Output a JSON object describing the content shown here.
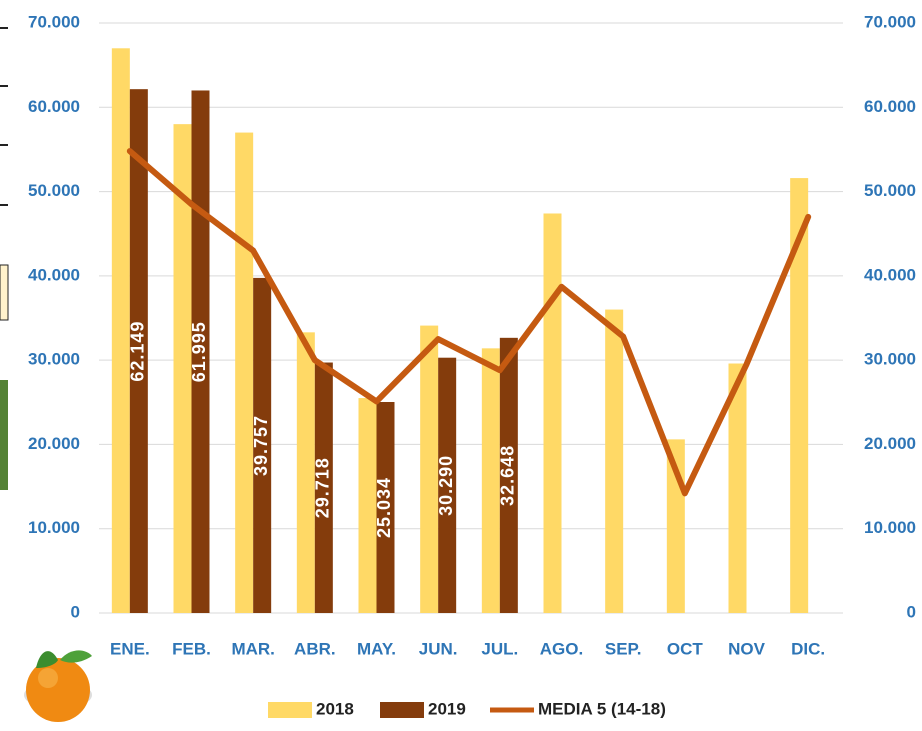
{
  "chart_data": {
    "type": "bar",
    "categories": [
      "ENE.",
      "FEB.",
      "MAR.",
      "ABR.",
      "MAY.",
      "JUN.",
      "JUL.",
      "AGO.",
      "SEP.",
      "OCT",
      "NOV",
      "DIC."
    ],
    "series": [
      {
        "name": "2018",
        "color": "#FFD966",
        "values": [
          67000,
          58000,
          57000,
          33300,
          25500,
          34100,
          31400,
          47400,
          36000,
          20600,
          29600,
          51600
        ]
      },
      {
        "name": "2019",
        "color": "#843C0C",
        "values": [
          62149,
          61995,
          39757,
          29718,
          25034,
          30290,
          32648,
          null,
          null,
          null,
          null,
          null
        ],
        "value_labels": [
          "62.149",
          "61.995",
          "39.757",
          "29.718",
          "25.034",
          "30.290",
          "32.648",
          null,
          null,
          null,
          null,
          null
        ]
      },
      {
        "name": "MEDIA 5 (14-18)",
        "type": "line",
        "axis": "y2",
        "color": "#C55A11",
        "values": [
          54800,
          48500,
          43000,
          30000,
          25100,
          32500,
          28800,
          38700,
          32800,
          14200,
          29500,
          47000
        ]
      }
    ],
    "ylim": [
      0,
      70000
    ],
    "yticks": [
      0,
      {
        "value": 10000,
        "label": "10.000"
      },
      {
        "value": 20000,
        "label": "20.000"
      },
      {
        "value": 30000,
        "label": "30.000"
      },
      {
        "value": 40000,
        "label": "40.000"
      },
      {
        "value": 50000,
        "label": "50.000"
      },
      {
        "value": 60000,
        "label": "60.000"
      },
      {
        "value": 70000,
        "label": "70.000"
      }
    ],
    "y2lim": [
      0,
      70000
    ],
    "y2ticks": [
      0,
      {
        "value": 10000,
        "label": "10.000"
      },
      {
        "value": 20000,
        "label": "20.000"
      },
      {
        "value": 30000,
        "label": "30.000"
      },
      {
        "value": 40000,
        "label": "40.000"
      },
      {
        "value": 50000,
        "label": "50.000"
      },
      {
        "value": 60000,
        "label": "60.000"
      },
      {
        "value": 70000,
        "label": "70.000"
      }
    ],
    "grid": true,
    "legend": "bottom"
  }
}
